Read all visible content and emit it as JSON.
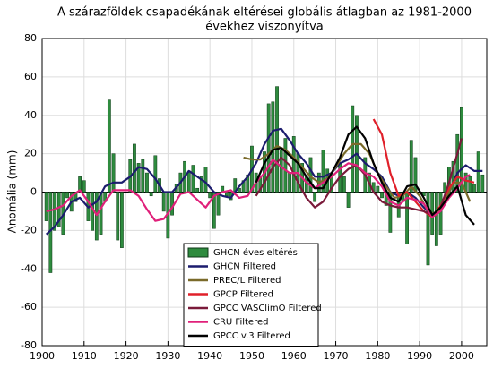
{
  "chart_data": {
    "type": "bar_line",
    "title": [
      "A szárazföldek csapadékának eltérései globális átlagban az 1981-2000",
      "évekhez viszonyítva"
    ],
    "ylabel": "Anomália (mm)",
    "xlim": [
      1900,
      2006
    ],
    "xticks": [
      1900,
      1910,
      1920,
      1930,
      1940,
      1950,
      1960,
      1970,
      1980,
      1990,
      2000
    ],
    "ylim": [
      -80,
      80
    ],
    "yticks": [
      -80,
      -60,
      -40,
      -20,
      0,
      20,
      40,
      60,
      80
    ],
    "grid": true,
    "series": [
      {
        "name": "GHCN éves eltérés",
        "kind": "bar",
        "color": "#2e8b3e",
        "x": [
          1901,
          1902,
          1903,
          1904,
          1905,
          1906,
          1907,
          1908,
          1909,
          1910,
          1911,
          1912,
          1913,
          1914,
          1915,
          1916,
          1917,
          1918,
          1919,
          1920,
          1921,
          1922,
          1923,
          1924,
          1925,
          1926,
          1927,
          1928,
          1929,
          1930,
          1931,
          1932,
          1933,
          1934,
          1935,
          1936,
          1937,
          1938,
          1939,
          1940,
          1941,
          1942,
          1943,
          1944,
          1945,
          1946,
          1947,
          1948,
          1949,
          1950,
          1951,
          1952,
          1953,
          1954,
          1955,
          1956,
          1957,
          1958,
          1959,
          1960,
          1961,
          1962,
          1963,
          1964,
          1965,
          1966,
          1967,
          1968,
          1969,
          1970,
          1971,
          1972,
          1973,
          1974,
          1975,
          1976,
          1977,
          1978,
          1979,
          1980,
          1981,
          1982,
          1983,
          1984,
          1985,
          1986,
          1987,
          1988,
          1989,
          1990,
          1991,
          1992,
          1993,
          1994,
          1995,
          1996,
          1997,
          1998,
          1999,
          2000,
          2001,
          2002,
          2003,
          2004,
          2005
        ],
        "values": [
          -15,
          -42,
          -20,
          -18,
          -22,
          -3,
          -10,
          -5,
          8,
          6,
          -15,
          -20,
          -25,
          -22,
          -5,
          48,
          20,
          -25,
          -29,
          0,
          17,
          25,
          15,
          17,
          10,
          -2,
          19,
          7,
          -10,
          -24,
          -12,
          4,
          10,
          16,
          11,
          14,
          2,
          8,
          13,
          -3,
          -19,
          -12,
          3,
          -2,
          -4,
          7,
          2,
          6,
          9,
          24,
          10,
          8,
          21,
          46,
          47,
          55,
          22,
          28,
          10,
          29,
          20,
          15,
          8,
          18,
          -5,
          10,
          22,
          12,
          10,
          0,
          15,
          8,
          -8,
          45,
          40,
          0,
          18,
          10,
          5,
          3,
          -3,
          -7,
          -21,
          0,
          -13,
          -5,
          -27,
          27,
          18,
          0,
          -2,
          -38,
          -22,
          -28,
          -22,
          5,
          13,
          16,
          30,
          44,
          10,
          8,
          4,
          21,
          9
        ]
      },
      {
        "name": "GHCN Filtered",
        "kind": "line",
        "color": "#1c1c6e",
        "x": [
          1901,
          1903,
          1905,
          1907,
          1909,
          1911,
          1913,
          1915,
          1917,
          1919,
          1921,
          1923,
          1925,
          1927,
          1929,
          1931,
          1933,
          1935,
          1937,
          1939,
          1941,
          1943,
          1945,
          1947,
          1949,
          1951,
          1953,
          1955,
          1957,
          1959,
          1961,
          1963,
          1965,
          1967,
          1969,
          1971,
          1973,
          1975,
          1977,
          1979,
          1981,
          1983,
          1985,
          1987,
          1989,
          1991,
          1993,
          1995,
          1997,
          1999,
          2001,
          2003,
          2005
        ],
        "values": [
          -22,
          -18,
          -12,
          -5,
          -3,
          -8,
          -5,
          3,
          5,
          5,
          8,
          13,
          12,
          7,
          0,
          0,
          5,
          11,
          8,
          5,
          0,
          -2,
          -3,
          3,
          8,
          15,
          25,
          32,
          33,
          27,
          20,
          15,
          8,
          8,
          10,
          15,
          17,
          20,
          15,
          12,
          8,
          0,
          -2,
          0,
          -3,
          -8,
          -12,
          -10,
          0,
          10,
          14,
          11,
          11
        ]
      },
      {
        "name": "PREC/L Filtered",
        "kind": "line",
        "color": "#7a6a2a",
        "x": [
          1948,
          1950,
          1952,
          1954,
          1956,
          1958,
          1960,
          1962,
          1964,
          1966,
          1968,
          1970,
          1972,
          1974,
          1976,
          1978,
          1980,
          1982,
          1984,
          1986,
          1988,
          1990,
          1992,
          1994,
          1996,
          1998,
          2000,
          2002
        ],
        "values": [
          18,
          17,
          17,
          20,
          24,
          22,
          18,
          13,
          8,
          5,
          7,
          13,
          20,
          25,
          25,
          20,
          10,
          3,
          -3,
          -2,
          3,
          -2,
          -10,
          -12,
          -5,
          5,
          5,
          -5
        ]
      },
      {
        "name": "GPCP Filtered",
        "kind": "line",
        "color": "#e0202a",
        "x": [
          1979,
          1981,
          1983,
          1985,
          1987,
          1989,
          1991,
          1993,
          1995,
          1997,
          1999,
          2001,
          2003
        ],
        "values": [
          38,
          30,
          10,
          -2,
          0,
          -5,
          -10,
          -13,
          -7,
          2,
          8,
          6,
          5
        ]
      },
      {
        "name": "GPCC VASClimO Filtered",
        "kind": "line",
        "color": "#7a1a3a",
        "x": [
          1951,
          1953,
          1955,
          1957,
          1959,
          1961,
          1963,
          1965,
          1967,
          1969,
          1971,
          1973,
          1975,
          1977,
          1979,
          1981,
          1983,
          1985,
          1987,
          1989,
          1991,
          1993,
          1995,
          1997,
          1999,
          2000
        ],
        "values": [
          -2,
          5,
          13,
          18,
          14,
          5,
          -3,
          -8,
          -5,
          2,
          8,
          12,
          14,
          9,
          0,
          -5,
          -7,
          -8,
          -8,
          -9,
          -10,
          -12,
          -8,
          5,
          20,
          28
        ]
      },
      {
        "name": "CRU Filtered",
        "kind": "line",
        "color": "#e0207a",
        "x": [
          1901,
          1903,
          1905,
          1907,
          1909,
          1911,
          1913,
          1915,
          1917,
          1919,
          1921,
          1923,
          1925,
          1927,
          1929,
          1931,
          1933,
          1935,
          1937,
          1939,
          1941,
          1943,
          1945,
          1947,
          1949,
          1951,
          1953,
          1955,
          1957,
          1959,
          1961,
          1963,
          1965,
          1967,
          1969,
          1971,
          1973,
          1975,
          1977,
          1979,
          1981,
          1983,
          1985,
          1987,
          1989,
          1991,
          1993,
          1995,
          1997,
          1999,
          2001,
          2002
        ],
        "values": [
          -10,
          -9,
          -7,
          -2,
          1,
          -5,
          -12,
          -5,
          1,
          1,
          1,
          -2,
          -9,
          -15,
          -14,
          -8,
          -1,
          0,
          -4,
          -8,
          -2,
          0,
          1,
          -3,
          -2,
          5,
          10,
          17,
          13,
          10,
          10,
          5,
          2,
          5,
          8,
          12,
          15,
          14,
          10,
          8,
          3,
          -5,
          -7,
          -3,
          -4,
          -6,
          -13,
          -10,
          -3,
          2,
          8,
          9
        ]
      },
      {
        "name": "GPCC v.3 Filtered",
        "kind": "line",
        "color": "#000000",
        "x": [
          1951,
          1953,
          1955,
          1957,
          1959,
          1961,
          1963,
          1965,
          1967,
          1969,
          1971,
          1973,
          1975,
          1977,
          1979,
          1981,
          1983,
          1985,
          1987,
          1989,
          1991,
          1993,
          1995,
          1997,
          1999,
          2001,
          2003
        ],
        "values": [
          5,
          15,
          22,
          23,
          19,
          15,
          8,
          2,
          2,
          10,
          18,
          30,
          34,
          28,
          15,
          5,
          -3,
          -5,
          3,
          4,
          -3,
          -12,
          -8,
          -2,
          3,
          -12,
          -17
        ]
      }
    ]
  }
}
